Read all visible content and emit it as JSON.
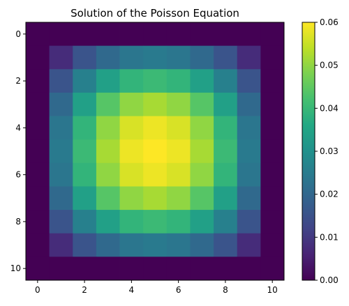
{
  "chart_data": {
    "type": "heatmap",
    "title": "Solution of the Poisson Equation",
    "xlabel": "",
    "ylabel": "",
    "x_ticks": [
      0,
      2,
      4,
      6,
      8,
      10
    ],
    "y_ticks": [
      0,
      2,
      4,
      6,
      8,
      10
    ],
    "x_range": [
      -0.5,
      10.5
    ],
    "y_range": [
      -0.5,
      10.5
    ],
    "grid": false,
    "colormap": "viridis",
    "colorbar": {
      "range": [
        0.0,
        0.06
      ],
      "ticks": [
        "0.00",
        "0.01",
        "0.02",
        "0.03",
        "0.04",
        "0.05",
        "0.06"
      ]
    },
    "values": [
      [
        0,
        0,
        0,
        0,
        0,
        0,
        0,
        0,
        0,
        0,
        0
      ],
      [
        0,
        0.0075,
        0.0155,
        0.0205,
        0.0235,
        0.0245,
        0.0235,
        0.0205,
        0.0155,
        0.0075,
        0
      ],
      [
        0,
        0.0155,
        0.026,
        0.034,
        0.039,
        0.0405,
        0.039,
        0.034,
        0.026,
        0.0155,
        0
      ],
      [
        0,
        0.0205,
        0.034,
        0.044,
        0.05,
        0.052,
        0.05,
        0.044,
        0.034,
        0.0205,
        0
      ],
      [
        0,
        0.0235,
        0.039,
        0.05,
        0.0565,
        0.0585,
        0.0565,
        0.05,
        0.039,
        0.0235,
        0
      ],
      [
        0,
        0.0245,
        0.0405,
        0.052,
        0.0585,
        0.0605,
        0.0585,
        0.052,
        0.0405,
        0.0245,
        0
      ],
      [
        0,
        0.0235,
        0.039,
        0.05,
        0.0565,
        0.0585,
        0.0565,
        0.05,
        0.039,
        0.0235,
        0
      ],
      [
        0,
        0.0205,
        0.034,
        0.044,
        0.05,
        0.052,
        0.05,
        0.044,
        0.034,
        0.0205,
        0
      ],
      [
        0,
        0.0155,
        0.026,
        0.034,
        0.039,
        0.0405,
        0.039,
        0.034,
        0.026,
        0.0155,
        0
      ],
      [
        0,
        0.0075,
        0.0155,
        0.0205,
        0.0235,
        0.0245,
        0.0235,
        0.0205,
        0.0155,
        0.0075,
        0
      ],
      [
        0,
        0,
        0,
        0,
        0,
        0,
        0,
        0,
        0,
        0,
        0
      ]
    ]
  }
}
